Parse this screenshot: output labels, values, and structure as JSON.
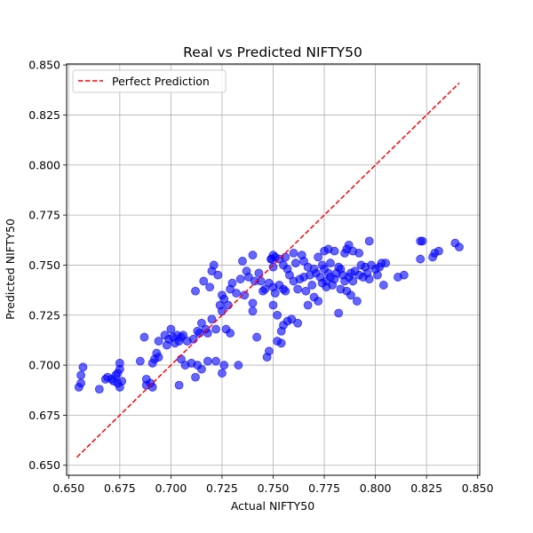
{
  "chart_data": {
    "type": "scatter",
    "title": "Real vs Predicted NIFTY50",
    "xlabel": "Actual NIFTY50",
    "ylabel": "Predicted NIFTY50",
    "xlim": [
      0.649,
      0.851
    ],
    "ylim": [
      0.645,
      0.8505
    ],
    "xticks": [
      0.65,
      0.675,
      0.7,
      0.725,
      0.75,
      0.775,
      0.8,
      0.825,
      0.85
    ],
    "yticks": [
      0.65,
      0.675,
      0.7,
      0.725,
      0.75,
      0.775,
      0.8,
      0.825,
      0.85
    ],
    "xtick_labels": [
      "0.650",
      "0.675",
      "0.700",
      "0.725",
      "0.750",
      "0.775",
      "0.800",
      "0.825",
      "0.850"
    ],
    "ytick_labels": [
      "0.650",
      "0.675",
      "0.700",
      "0.725",
      "0.750",
      "0.775",
      "0.800",
      "0.825",
      "0.850"
    ],
    "grid": true,
    "legend_position": "top-left",
    "colors": {
      "points": "#0000ff",
      "line": "#ff0000",
      "grid": "#b0b0b0"
    },
    "series": [
      {
        "name": "",
        "kind": "scatter",
        "points": [
          [
            0.655,
            0.689
          ],
          [
            0.656,
            0.695
          ],
          [
            0.656,
            0.691
          ],
          [
            0.657,
            0.699
          ],
          [
            0.665,
            0.688
          ],
          [
            0.668,
            0.693
          ],
          [
            0.669,
            0.694
          ],
          [
            0.671,
            0.693
          ],
          [
            0.672,
            0.692
          ],
          [
            0.673,
            0.695
          ],
          [
            0.674,
            0.691
          ],
          [
            0.674,
            0.696
          ],
          [
            0.675,
            0.698
          ],
          [
            0.675,
            0.701
          ],
          [
            0.675,
            0.689
          ],
          [
            0.676,
            0.692
          ],
          [
            0.685,
            0.702
          ],
          [
            0.687,
            0.714
          ],
          [
            0.688,
            0.693
          ],
          [
            0.688,
            0.69
          ],
          [
            0.69,
            0.691
          ],
          [
            0.691,
            0.689
          ],
          [
            0.691,
            0.701
          ],
          [
            0.692,
            0.703
          ],
          [
            0.693,
            0.706
          ],
          [
            0.694,
            0.712
          ],
          [
            0.694,
            0.704
          ],
          [
            0.697,
            0.715
          ],
          [
            0.698,
            0.71
          ],
          [
            0.699,
            0.713
          ],
          [
            0.7,
            0.718
          ],
          [
            0.701,
            0.714
          ],
          [
            0.702,
            0.711
          ],
          [
            0.703,
            0.715
          ],
          [
            0.704,
            0.69
          ],
          [
            0.704,
            0.712
          ],
          [
            0.705,
            0.714
          ],
          [
            0.705,
            0.703
          ],
          [
            0.706,
            0.715
          ],
          [
            0.707,
            0.7
          ],
          [
            0.708,
            0.712
          ],
          [
            0.71,
            0.701
          ],
          [
            0.711,
            0.713
          ],
          [
            0.712,
            0.694
          ],
          [
            0.712,
            0.737
          ],
          [
            0.713,
            0.717
          ],
          [
            0.713,
            0.7
          ],
          [
            0.714,
            0.716
          ],
          [
            0.715,
            0.721
          ],
          [
            0.715,
            0.698
          ],
          [
            0.716,
            0.742
          ],
          [
            0.717,
            0.718
          ],
          [
            0.718,
            0.716
          ],
          [
            0.718,
            0.702
          ],
          [
            0.719,
            0.739
          ],
          [
            0.72,
            0.723
          ],
          [
            0.72,
            0.747
          ],
          [
            0.721,
            0.75
          ],
          [
            0.722,
            0.718
          ],
          [
            0.722,
            0.702
          ],
          [
            0.723,
            0.745
          ],
          [
            0.724,
            0.73
          ],
          [
            0.725,
            0.735
          ],
          [
            0.725,
            0.727
          ],
          [
            0.725,
            0.696
          ],
          [
            0.726,
            0.7
          ],
          [
            0.726,
            0.733
          ],
          [
            0.727,
            0.718
          ],
          [
            0.728,
            0.73
          ],
          [
            0.729,
            0.738
          ],
          [
            0.729,
            0.716
          ],
          [
            0.73,
            0.741
          ],
          [
            0.732,
            0.736
          ],
          [
            0.733,
            0.7
          ],
          [
            0.734,
            0.743
          ],
          [
            0.735,
            0.752
          ],
          [
            0.736,
            0.735
          ],
          [
            0.737,
            0.747
          ],
          [
            0.738,
            0.744
          ],
          [
            0.74,
            0.731
          ],
          [
            0.74,
            0.727
          ],
          [
            0.74,
            0.755
          ],
          [
            0.741,
            0.742
          ],
          [
            0.742,
            0.714
          ],
          [
            0.743,
            0.746
          ],
          [
            0.744,
            0.742
          ],
          [
            0.745,
            0.737
          ],
          [
            0.746,
            0.738
          ],
          [
            0.747,
            0.704
          ],
          [
            0.748,
            0.707
          ],
          [
            0.748,
            0.741
          ],
          [
            0.749,
            0.753
          ],
          [
            0.749,
            0.753
          ],
          [
            0.75,
            0.755
          ],
          [
            0.75,
            0.749
          ],
          [
            0.75,
            0.73
          ],
          [
            0.75,
            0.739
          ],
          [
            0.751,
            0.754
          ],
          [
            0.751,
            0.736
          ],
          [
            0.752,
            0.712
          ],
          [
            0.752,
            0.725
          ],
          [
            0.753,
            0.753
          ],
          [
            0.753,
            0.74
          ],
          [
            0.754,
            0.711
          ],
          [
            0.754,
            0.717
          ],
          [
            0.755,
            0.75
          ],
          [
            0.755,
            0.738
          ],
          [
            0.755,
            0.72
          ],
          [
            0.756,
            0.754
          ],
          [
            0.756,
            0.737
          ],
          [
            0.757,
            0.722
          ],
          [
            0.757,
            0.748
          ],
          [
            0.758,
            0.745
          ],
          [
            0.759,
            0.723
          ],
          [
            0.76,
            0.756
          ],
          [
            0.76,
            0.742
          ],
          [
            0.761,
            0.751
          ],
          [
            0.762,
            0.738
          ],
          [
            0.762,
            0.721
          ],
          [
            0.763,
            0.743
          ],
          [
            0.764,
            0.755
          ],
          [
            0.765,
            0.744
          ],
          [
            0.765,
            0.752
          ],
          [
            0.766,
            0.737
          ],
          [
            0.767,
            0.749
          ],
          [
            0.767,
            0.73
          ],
          [
            0.768,
            0.745
          ],
          [
            0.769,
            0.74
          ],
          [
            0.77,
            0.748
          ],
          [
            0.77,
            0.734
          ],
          [
            0.771,
            0.746
          ],
          [
            0.772,
            0.732
          ],
          [
            0.772,
            0.754
          ],
          [
            0.773,
            0.744
          ],
          [
            0.774,
            0.741
          ],
          [
            0.774,
            0.75
          ],
          [
            0.775,
            0.757
          ],
          [
            0.775,
            0.748
          ],
          [
            0.776,
            0.742
          ],
          [
            0.776,
            0.739
          ],
          [
            0.777,
            0.746
          ],
          [
            0.777,
            0.758
          ],
          [
            0.778,
            0.744
          ],
          [
            0.778,
            0.751
          ],
          [
            0.779,
            0.74
          ],
          [
            0.78,
            0.757
          ],
          [
            0.78,
            0.743
          ],
          [
            0.781,
            0.746
          ],
          [
            0.782,
            0.749
          ],
          [
            0.782,
            0.726
          ],
          [
            0.783,
            0.748
          ],
          [
            0.783,
            0.738
          ],
          [
            0.784,
            0.745
          ],
          [
            0.785,
            0.756
          ],
          [
            0.785,
            0.742
          ],
          [
            0.786,
            0.758
          ],
          [
            0.786,
            0.737
          ],
          [
            0.787,
            0.76
          ],
          [
            0.787,
            0.744
          ],
          [
            0.788,
            0.746
          ],
          [
            0.788,
            0.735
          ],
          [
            0.789,
            0.757
          ],
          [
            0.789,
            0.742
          ],
          [
            0.79,
            0.747
          ],
          [
            0.791,
            0.732
          ],
          [
            0.792,
            0.745
          ],
          [
            0.792,
            0.756
          ],
          [
            0.793,
            0.75
          ],
          [
            0.794,
            0.744
          ],
          [
            0.795,
            0.749
          ],
          [
            0.796,
            0.746
          ],
          [
            0.797,
            0.743
          ],
          [
            0.797,
            0.762
          ],
          [
            0.798,
            0.75
          ],
          [
            0.8,
            0.748
          ],
          [
            0.801,
            0.745
          ],
          [
            0.802,
            0.749
          ],
          [
            0.803,
            0.751
          ],
          [
            0.804,
            0.74
          ],
          [
            0.805,
            0.751
          ],
          [
            0.811,
            0.744
          ],
          [
            0.814,
            0.745
          ],
          [
            0.822,
            0.753
          ],
          [
            0.822,
            0.762
          ],
          [
            0.823,
            0.762
          ],
          [
            0.828,
            0.754
          ],
          [
            0.829,
            0.756
          ],
          [
            0.831,
            0.757
          ],
          [
            0.839,
            0.761
          ],
          [
            0.841,
            0.759
          ]
        ]
      },
      {
        "name": "Perfect Prediction",
        "kind": "line",
        "style": "dashed",
        "points": [
          [
            0.654,
            0.654
          ],
          [
            0.841,
            0.841
          ]
        ]
      }
    ]
  }
}
